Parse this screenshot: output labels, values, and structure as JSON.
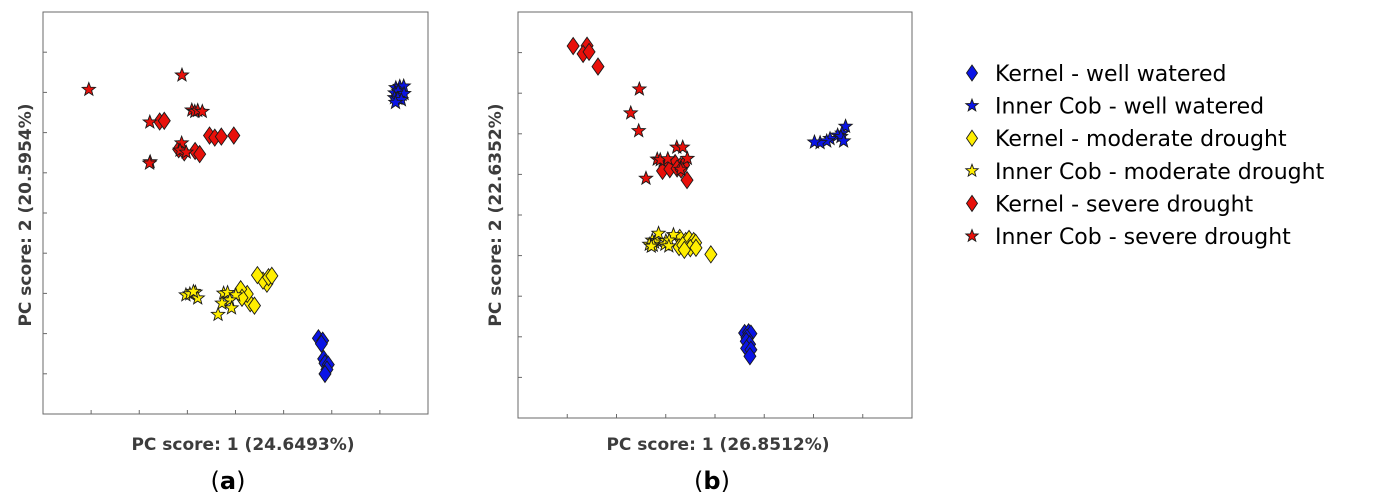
{
  "legend": [
    {
      "label": "Kernel - well watered",
      "marker": "diamond",
      "color": "#0a14e6"
    },
    {
      "label": "Inner Cob - well watered",
      "marker": "star",
      "color": "#0a14e6"
    },
    {
      "label": "Kernel - moderate drought",
      "marker": "diamond",
      "color": "#ffee00"
    },
    {
      "label": "Inner Cob - moderate drought",
      "marker": "star",
      "color": "#ffee00"
    },
    {
      "label": "Kernel - severe drought",
      "marker": "diamond",
      "color": "#e8100a"
    },
    {
      "label": "Inner Cob - severe drought",
      "marker": "star",
      "color": "#e8100a"
    }
  ],
  "chart_data": [
    {
      "type": "scatter",
      "panel_label": "a",
      "xlabel": "PC score: 1 (24.6493%)",
      "ylabel": "PC score: 2 (20.5954%)",
      "xlim": [
        0,
        100
      ],
      "ylim": [
        0,
        100
      ],
      "tick_labels_shown": false,
      "series": [
        {
          "name": "Kernel - well watered",
          "marker": "diamond",
          "color": "#0a14e6",
          "points": [
            [
              73.3,
              14.5
            ],
            [
              74.6,
              13.8
            ],
            [
              74.2,
              12.9
            ],
            [
              74.9,
              8.5
            ],
            [
              75.3,
              7.2
            ],
            [
              76.3,
              6.8
            ],
            [
              75.9,
              5.4
            ],
            [
              75.3,
              4.1
            ]
          ]
        },
        {
          "name": "Inner Cob - well watered",
          "marker": "star",
          "color": "#0a14e6",
          "points": [
            [
              96.9,
              87.5
            ],
            [
              98.1,
              87.9
            ],
            [
              99.3,
              88.0
            ],
            [
              96.6,
              86.0
            ],
            [
              97.6,
              86.5
            ],
            [
              98.8,
              85.5
            ],
            [
              99.4,
              85.8
            ],
            [
              96.5,
              84.6
            ],
            [
              97.5,
              84.4
            ],
            [
              98.6,
              84.0
            ],
            [
              96.8,
              83.2
            ]
          ]
        },
        {
          "name": "Kernel - moderate drought",
          "marker": "diamond",
          "color": "#ffee00",
          "points": [
            [
              52.5,
              24.7
            ],
            [
              53.8,
              24.0
            ],
            [
              51.6,
              27.4
            ],
            [
              49.6,
              28.8
            ],
            [
              57.6,
              30.4
            ],
            [
              56.4,
              31.3
            ],
            [
              54.7,
              32.9
            ],
            [
              58.1,
              32.3
            ],
            [
              59.1,
              32.7
            ],
            [
              50.0,
              26.3
            ]
          ]
        },
        {
          "name": "Inner Cob - moderate drought",
          "marker": "star",
          "color": "#ffee00",
          "points": [
            [
              32.9,
              27.1
            ],
            [
              34.1,
              27.4
            ],
            [
              35.8,
              27.9
            ],
            [
              36.5,
              26.2
            ],
            [
              35.2,
              28.1
            ],
            [
              44.4,
              27.6
            ],
            [
              45.6,
              27.8
            ],
            [
              48.1,
              27.1
            ],
            [
              46.3,
              25.6
            ],
            [
              43.9,
              24.7
            ],
            [
              46.8,
              23.3
            ],
            [
              42.7,
              21.4
            ]
          ]
        },
        {
          "name": "Kernel - severe drought",
          "marker": "diamond",
          "color": "#e8100a",
          "points": [
            [
              24.9,
              77.7
            ],
            [
              26.3,
              77.9
            ],
            [
              40.1,
              73.6
            ],
            [
              41.7,
              73.0
            ],
            [
              43.7,
              73.3
            ],
            [
              47.5,
              73.6
            ],
            [
              30.7,
              69.6
            ],
            [
              32.4,
              68.7
            ],
            [
              35.7,
              69.1
            ],
            [
              37.1,
              68.2
            ]
          ]
        },
        {
          "name": "Inner Cob - severe drought",
          "marker": "star",
          "color": "#e8100a",
          "points": [
            [
              3.3,
              87.0
            ],
            [
              31.7,
              91.2
            ],
            [
              34.7,
              81.0
            ],
            [
              35.6,
              80.6
            ],
            [
              36.5,
              80.9
            ],
            [
              37.9,
              80.6
            ],
            [
              21.9,
              77.5
            ],
            [
              31.6,
              71.4
            ],
            [
              31.1,
              69.3
            ],
            [
              33.0,
              68.7
            ],
            [
              22.0,
              65.9
            ],
            [
              21.8,
              65.5
            ]
          ]
        }
      ]
    },
    {
      "type": "scatter",
      "panel_label": "b",
      "xlabel": "PC score: 1 (26.8512%)",
      "ylabel": "PC score: 2 (22.6352%)",
      "xlim": [
        0,
        100
      ],
      "ylim": [
        0,
        100
      ],
      "tick_labels_shown": false,
      "series": [
        {
          "name": "Kernel - well watered",
          "marker": "diamond",
          "color": "#0a14e6",
          "points": [
            [
              59.1,
              15.5
            ],
            [
              60.3,
              15.7
            ],
            [
              61.0,
              15.3
            ],
            [
              59.8,
              14.1
            ],
            [
              59.6,
              13.1
            ],
            [
              60.6,
              12.2
            ],
            [
              59.7,
              11.0
            ],
            [
              61.0,
              10.6
            ],
            [
              60.7,
              8.7
            ]
          ]
        },
        {
          "name": "Inner Cob - well watered",
          "marker": "star",
          "color": "#0a14e6",
          "points": [
            [
              89.6,
              75.9
            ],
            [
              88.5,
              73.9
            ],
            [
              87.2,
              73.3
            ],
            [
              88.2,
              72.9
            ],
            [
              84.9,
              72.3
            ],
            [
              83.9,
              71.6
            ],
            [
              81.9,
              71.1
            ],
            [
              89.0,
              71.6
            ],
            [
              80.2,
              71.3
            ]
          ]
        },
        {
          "name": "Kernel - moderate drought",
          "marker": "diamond",
          "color": "#ffee00",
          "points": [
            [
              39.5,
              43.3
            ],
            [
              41.3,
              42.4
            ],
            [
              42.3,
              43.0
            ],
            [
              43.7,
              42.4
            ],
            [
              39.3,
              40.6
            ],
            [
              40.4,
              41.2
            ],
            [
              44.3,
              41.9
            ],
            [
              42.7,
              40.3
            ],
            [
              40.9,
              39.8
            ],
            [
              44.4,
              40.4
            ],
            [
              48.9,
              38.5
            ]
          ]
        },
        {
          "name": "Inner Cob - moderate drought",
          "marker": "star",
          "color": "#ffee00",
          "points": [
            [
              31.2,
              42.6
            ],
            [
              32.5,
              42.5
            ],
            [
              31.9,
              42.0
            ],
            [
              30.3,
              41.4
            ],
            [
              31.5,
              41.1
            ],
            [
              30.9,
              40.8
            ],
            [
              33.1,
              44.6
            ],
            [
              35.3,
              42.4
            ],
            [
              35.0,
              41.4
            ],
            [
              37.6,
              44.2
            ],
            [
              36.3,
              42.6
            ],
            [
              36.2,
              40.9
            ]
          ]
        },
        {
          "name": "Kernel - severe drought",
          "marker": "diamond",
          "color": "#e8100a",
          "points": [
            [
              7.3,
              99.4
            ],
            [
              11.5,
              99.5
            ],
            [
              10.3,
              97.1
            ],
            [
              12.1,
              97.7
            ],
            [
              14.8,
              93.4
            ],
            [
              35.0,
              64.3
            ],
            [
              36.2,
              65.1
            ],
            [
              38.1,
              65.2
            ],
            [
              39.7,
              64.3
            ],
            [
              40.7,
              64.6
            ],
            [
              34.3,
              62.9
            ],
            [
              36.5,
              63.4
            ],
            [
              38.7,
              63.6
            ],
            [
              39.9,
              63.3
            ],
            [
              41.7,
              60.2
            ]
          ]
        },
        {
          "name": "Inner Cob - severe drought",
          "marker": "star",
          "color": "#e8100a",
          "points": [
            [
              27.3,
              86.8
            ],
            [
              24.7,
              79.8
            ],
            [
              27.1,
              74.6
            ],
            [
              38.6,
              69.8
            ],
            [
              40.4,
              69.8
            ],
            [
              32.7,
              66.3
            ],
            [
              33.6,
              66.1
            ],
            [
              35.9,
              66.4
            ],
            [
              41.8,
              66.5
            ],
            [
              39.8,
              63.3
            ],
            [
              29.3,
              60.7
            ]
          ]
        }
      ]
    }
  ]
}
